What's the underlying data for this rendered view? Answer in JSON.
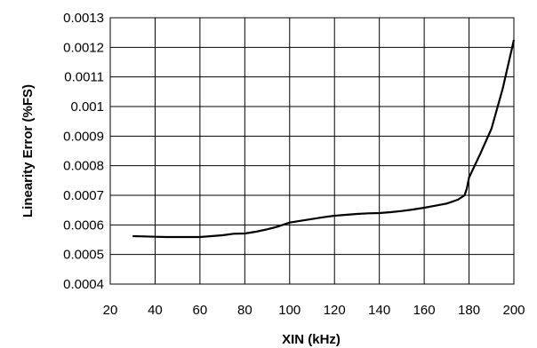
{
  "chart_data": {
    "type": "line",
    "title": "",
    "xlabel": "XIN (kHz)",
    "ylabel": "Linearity Error (%FS)",
    "xlim": [
      20,
      200
    ],
    "ylim": [
      0.0004,
      0.0013
    ],
    "grid": true,
    "legend": "none",
    "x_ticks": [
      "20",
      "40",
      "60",
      "80",
      "100",
      "120",
      "140",
      "160",
      "180",
      "200"
    ],
    "y_ticks": [
      "0.0004",
      "0.0005",
      "0.0006",
      "0.0007",
      "0.0008",
      "0.0009",
      "0.001",
      "0.0011",
      "0.0012",
      "0.0013"
    ],
    "line_color": "#000000",
    "series": [
      {
        "x": [
          30,
          35,
          40,
          45,
          50,
          55,
          60,
          65,
          70,
          75,
          80,
          85,
          90,
          95,
          100,
          105,
          110,
          115,
          120,
          125,
          130,
          135,
          140,
          145,
          150,
          155,
          160,
          165,
          170,
          175,
          178,
          179,
          180,
          185,
          190,
          195,
          200
        ],
        "y": [
          0.000562,
          0.000561,
          0.00056,
          0.000559,
          0.000559,
          0.000559,
          0.000559,
          0.000562,
          0.000565,
          0.00057,
          0.000571,
          0.000577,
          0.000585,
          0.000595,
          0.000608,
          0.000614,
          0.00062,
          0.000626,
          0.000631,
          0.000634,
          0.000637,
          0.000639,
          0.00064,
          0.000643,
          0.000647,
          0.000652,
          0.000658,
          0.000665,
          0.000672,
          0.000685,
          0.0007,
          0.000722,
          0.00076,
          0.00084,
          0.000925,
          0.00106,
          0.001225
        ]
      }
    ]
  }
}
